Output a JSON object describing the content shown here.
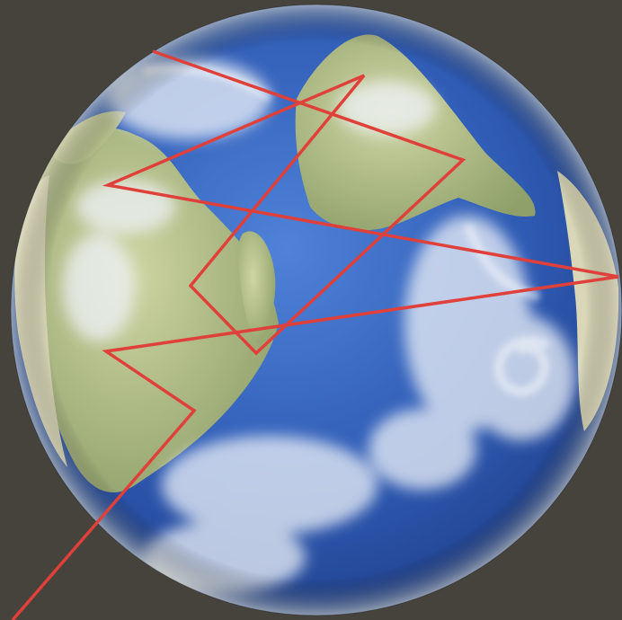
{
  "scene": {
    "background_color": "#46433d",
    "ocean_color": "#2f5bb4",
    "ocean_highlight": "#4d7fd6",
    "land_color": "#a8b883",
    "land_highlight": "#d9dcb6",
    "cloud_color": "#e8eef7",
    "path_color": "#e0403a",
    "limb_color": "#dcd6bb"
  },
  "overlay": {
    "description_icon": "globe-icon",
    "path_points_count_note": ""
  }
}
